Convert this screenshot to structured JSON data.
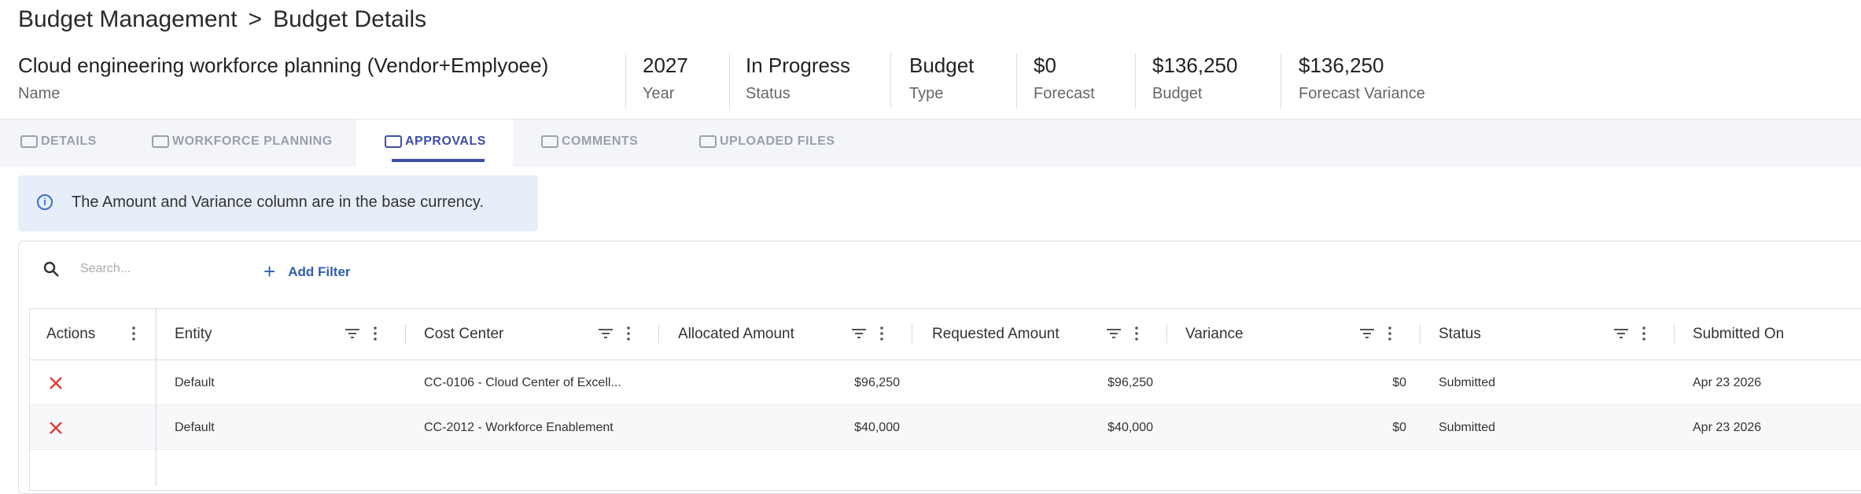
{
  "breadcrumb": {
    "parent": "Budget Management",
    "current": "Budget Details"
  },
  "summary": [
    {
      "value": "Cloud engineering workforce planning (Vendor+Emplyoee)",
      "label": "Name"
    },
    {
      "value": "2027",
      "label": "Year"
    },
    {
      "value": "In Progress",
      "label": "Status"
    },
    {
      "value": "Budget",
      "label": "Type"
    },
    {
      "value": "$0",
      "label": "Forecast"
    },
    {
      "value": "$136,250",
      "label": "Budget"
    },
    {
      "value": "$136,250",
      "label": "Forecast Variance"
    }
  ],
  "tabs": [
    "DETAILS",
    "WORKFORCE PLANNING",
    "APPROVALS",
    "COMMENTS",
    "UPLOADED FILES"
  ],
  "active_tab": 2,
  "notice": "The Amount and Variance column are in the base currency.",
  "search_placeholder": "Search...",
  "add_filter": "Add Filter",
  "table": {
    "columns": [
      "Actions",
      "Entity",
      "Cost Center",
      "Allocated Amount",
      "Requested Amount",
      "Variance",
      "Status",
      "Submitted On"
    ],
    "rows": [
      [
        "Default",
        "CC-0106 - Cloud Center of Excell...",
        "$96,250",
        "$96,250",
        "$0",
        "Submitted",
        "Apr 23 2026"
      ],
      [
        "Default",
        "CC-2012 - Workforce Enablement",
        "$40,000",
        "$40,000",
        "$0",
        "Submitted",
        "Apr 23 2026"
      ]
    ]
  }
}
